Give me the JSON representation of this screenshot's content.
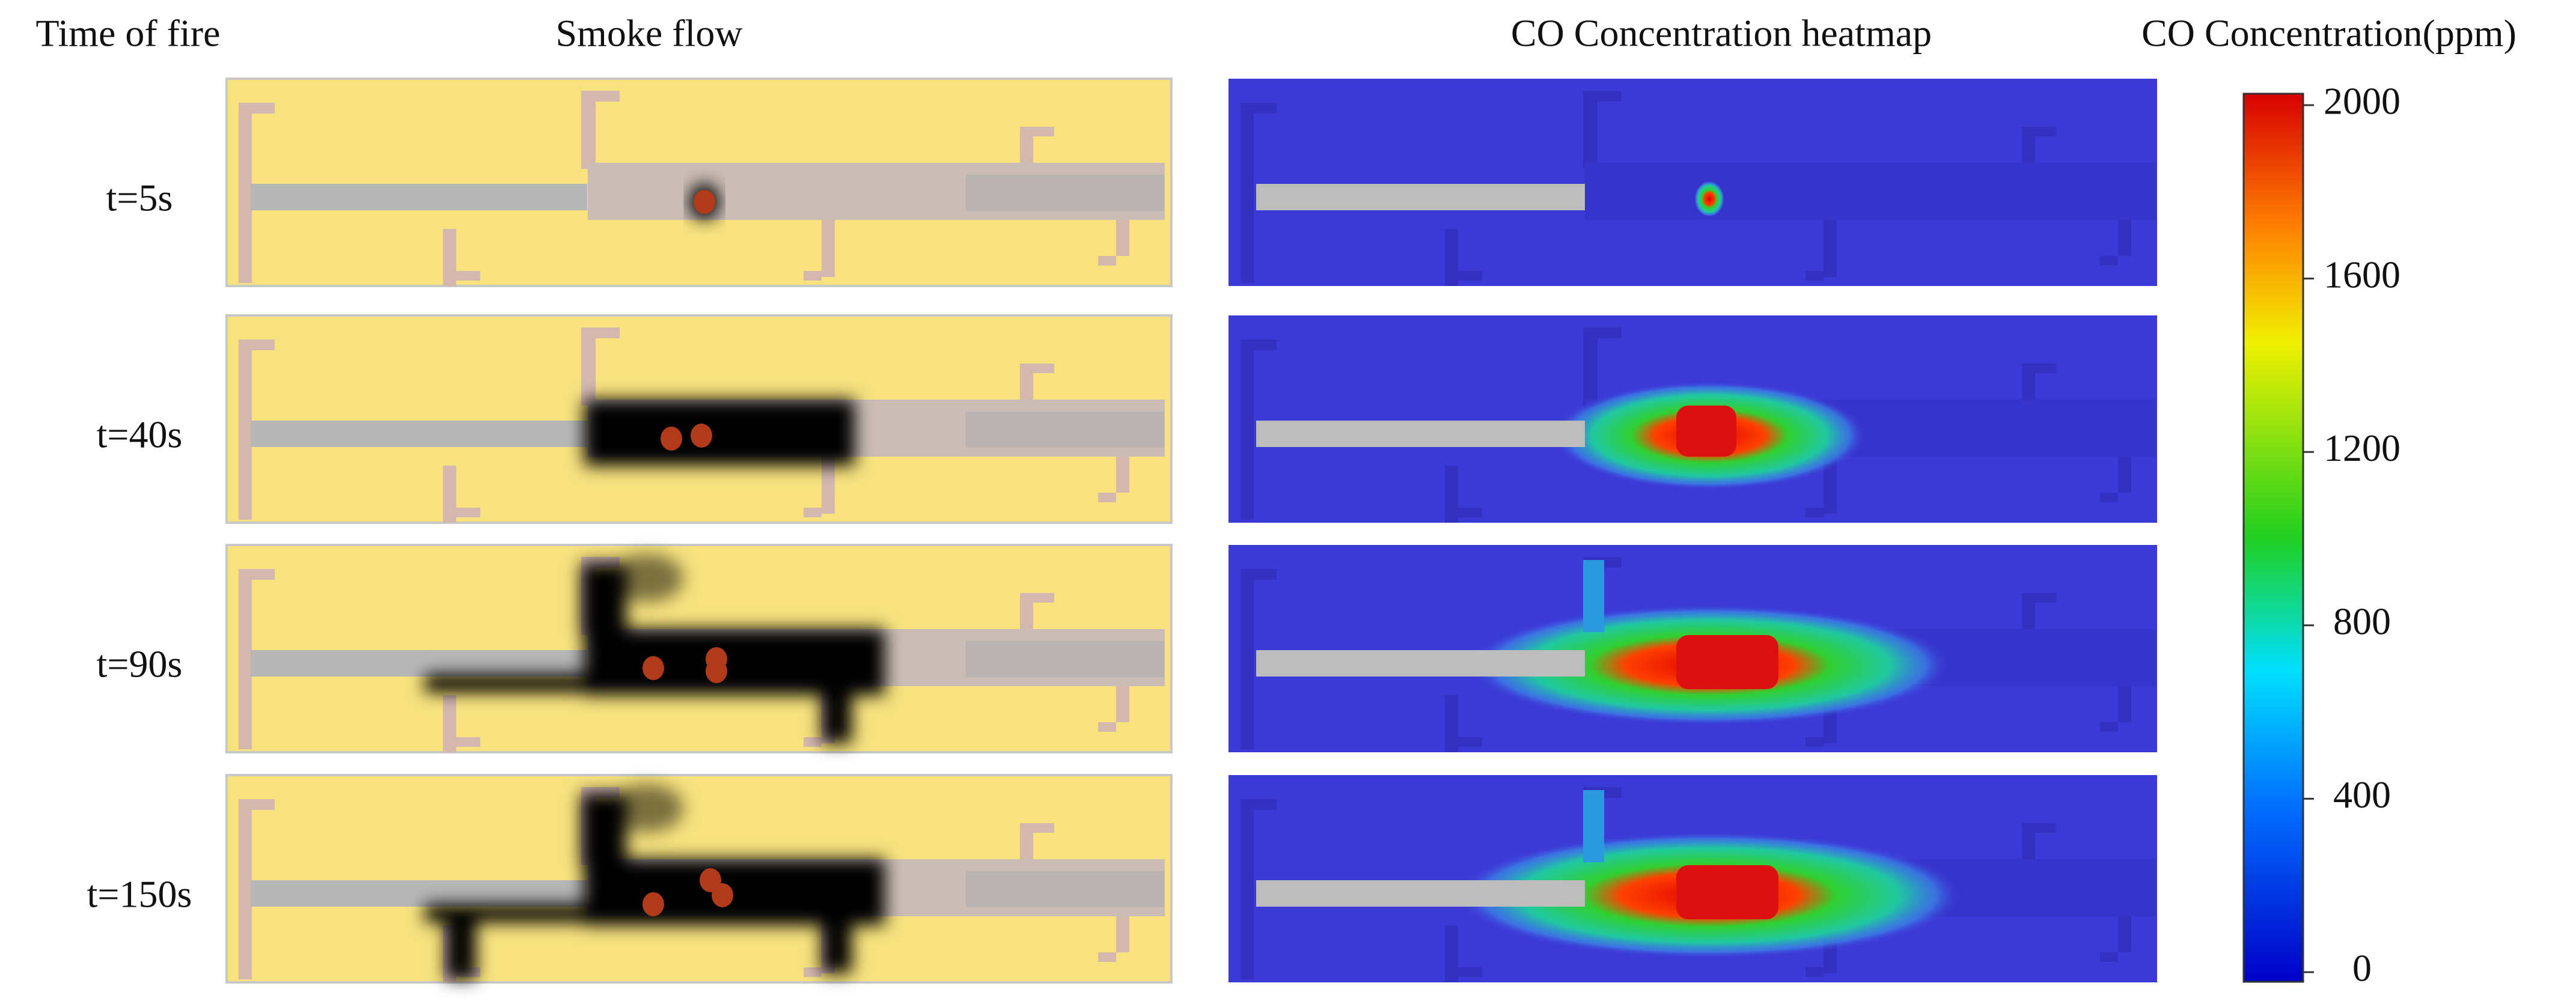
{
  "figure": {
    "column_headers": [
      "Time of fire",
      "Smoke flow",
      "CO Concentration heatmap"
    ],
    "rows": [
      "t=5s",
      "t=40s",
      "t=90s",
      "t=150s"
    ],
    "colorbar": {
      "title": "CO Concentration(ppm)",
      "range": [
        0,
        2000
      ],
      "ticks": [
        0,
        400,
        800,
        1200,
        1600,
        2000
      ]
    }
  }
}
